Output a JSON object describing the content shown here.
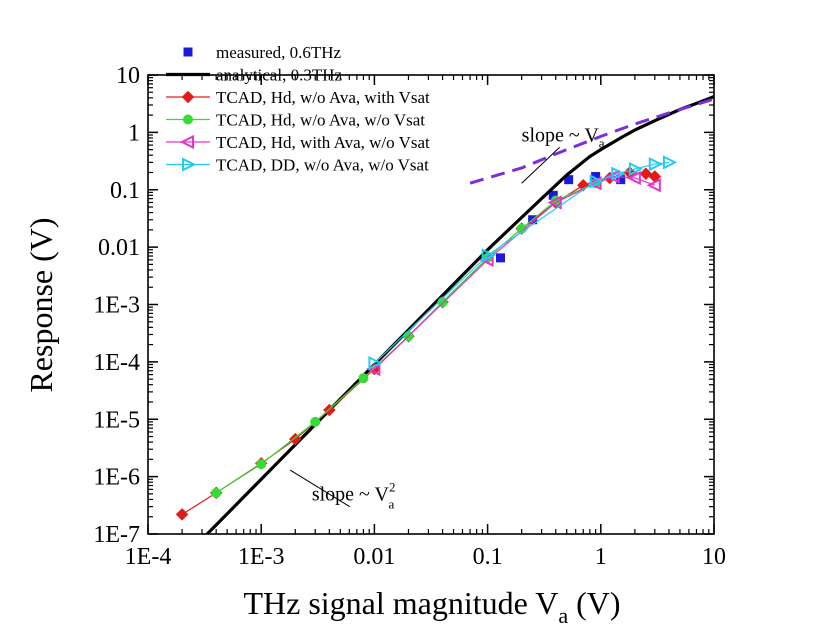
{
  "chart_data": {
    "type": "scatter",
    "title": "",
    "xlabel_main": "THz signal magnitude V",
    "xlabel_sub": "a",
    "xlabel_unit": " (V)",
    "ylabel": "Response (V)",
    "xscale": "log",
    "yscale": "log",
    "xlim": [
      0.0001,
      10
    ],
    "ylim": [
      1e-07,
      10
    ],
    "grid": false,
    "legend_position": "top-left",
    "xticks": [
      {
        "value": 0.0001,
        "label": "1E-4"
      },
      {
        "value": 0.001,
        "label": "1E-3"
      },
      {
        "value": 0.01,
        "label": "0.01"
      },
      {
        "value": 0.1,
        "label": "0.1"
      },
      {
        "value": 1,
        "label": "1"
      },
      {
        "value": 10,
        "label": "10"
      }
    ],
    "yticks": [
      {
        "value": 1e-07,
        "label": "1E-7"
      },
      {
        "value": 1e-06,
        "label": "1E-6"
      },
      {
        "value": 1e-05,
        "label": "1E-5"
      },
      {
        "value": 0.0001,
        "label": "1E-4"
      },
      {
        "value": 0.001,
        "label": "1E-3"
      },
      {
        "value": 0.01,
        "label": "0.01"
      },
      {
        "value": 0.1,
        "label": "0.1"
      },
      {
        "value": 1,
        "label": "1"
      },
      {
        "value": 10,
        "label": "10"
      }
    ],
    "series": [
      {
        "name": "measured, 0.6THz",
        "kind": "points",
        "marker": "square",
        "color": "#1a1adb",
        "x": [
          0.13,
          0.25,
          0.38,
          0.52,
          0.9,
          1.5
        ],
        "y": [
          0.0065,
          0.03,
          0.08,
          0.15,
          0.17,
          0.15
        ]
      },
      {
        "name": "analytical, 0.3THz",
        "kind": "line",
        "color": "#000000",
        "x": [
          0.0003,
          0.001,
          0.003,
          0.01,
          0.03,
          0.1,
          0.2,
          0.3,
          0.5,
          0.8,
          1,
          1.5,
          2,
          3,
          5,
          7,
          10
        ],
        "y": [
          8.1e-08,
          9e-07,
          8.1e-06,
          9e-05,
          0.00081,
          0.009,
          0.033,
          0.07,
          0.18,
          0.38,
          0.5,
          0.8,
          1.1,
          1.6,
          2.5,
          3.2,
          4.2
        ]
      },
      {
        "name": "TCAD, Hd, w/o Ava, with Vsat",
        "kind": "line+points",
        "marker": "diamond",
        "color": "#e31a1a",
        "x": [
          0.0002,
          0.0004,
          0.001,
          0.002,
          0.004,
          0.01,
          0.02,
          0.04,
          0.1,
          0.2,
          0.4,
          0.7,
          1.2,
          1.8,
          2.5,
          3
        ],
        "y": [
          2.2e-07,
          5.2e-07,
          1.7e-06,
          4.5e-06,
          1.45e-05,
          7.5e-05,
          0.00028,
          0.0011,
          0.0065,
          0.021,
          0.06,
          0.12,
          0.16,
          0.2,
          0.19,
          0.17
        ]
      },
      {
        "name": "TCAD, Hd, w/o Ava, w/o Vsat",
        "kind": "line+points",
        "marker": "circle",
        "color": "#33dd33",
        "x": [
          0.0004,
          0.001,
          0.003,
          0.008,
          0.02,
          0.04,
          0.1,
          0.2,
          0.4,
          0.9
        ],
        "y": [
          5.2e-07,
          1.65e-06,
          9e-06,
          5.2e-05,
          0.00028,
          0.0011,
          0.0065,
          0.021,
          0.065,
          0.13
        ]
      },
      {
        "name": "TCAD, Hd, with Ava, w/o Vsat",
        "kind": "line+points",
        "marker": "triangle-left",
        "color": "#e633cc",
        "x": [
          0.01,
          0.1,
          0.4,
          0.9,
          1.3,
          2,
          3
        ],
        "y": [
          7.5e-05,
          0.006,
          0.06,
          0.13,
          0.17,
          0.16,
          0.12
        ]
      },
      {
        "name": "TCAD, DD, w/o Ava, w/o Vsat",
        "kind": "line+points",
        "marker": "triangle-right",
        "color": "#22ccee",
        "x": [
          0.01,
          0.1,
          0.9,
          1.4,
          2,
          3,
          4
        ],
        "y": [
          9.5e-05,
          0.0072,
          0.14,
          0.19,
          0.23,
          0.28,
          0.3
        ]
      },
      {
        "name": "",
        "kind": "dashed-line",
        "color": "#7b2ee0",
        "x": [
          0.07,
          0.2,
          0.5,
          1,
          2,
          5,
          10
        ],
        "y": [
          0.13,
          0.24,
          0.5,
          0.85,
          1.4,
          2.5,
          3.8
        ]
      }
    ],
    "annotations": [
      {
        "name": "slope-va",
        "text_main": "slope ~ V",
        "text_sub": "a",
        "text_sup": "",
        "anchor_x": 0.2,
        "anchor_y": 0.7,
        "target_x": 0.2,
        "target_y": 0.13
      },
      {
        "name": "slope-va2",
        "text_main": "slope ~ V",
        "text_sub": "a",
        "text_sup": "2",
        "anchor_x": 0.0028,
        "anchor_y": 3.8e-07,
        "target_x": 0.0018,
        "target_y": 1.3e-06
      }
    ]
  }
}
